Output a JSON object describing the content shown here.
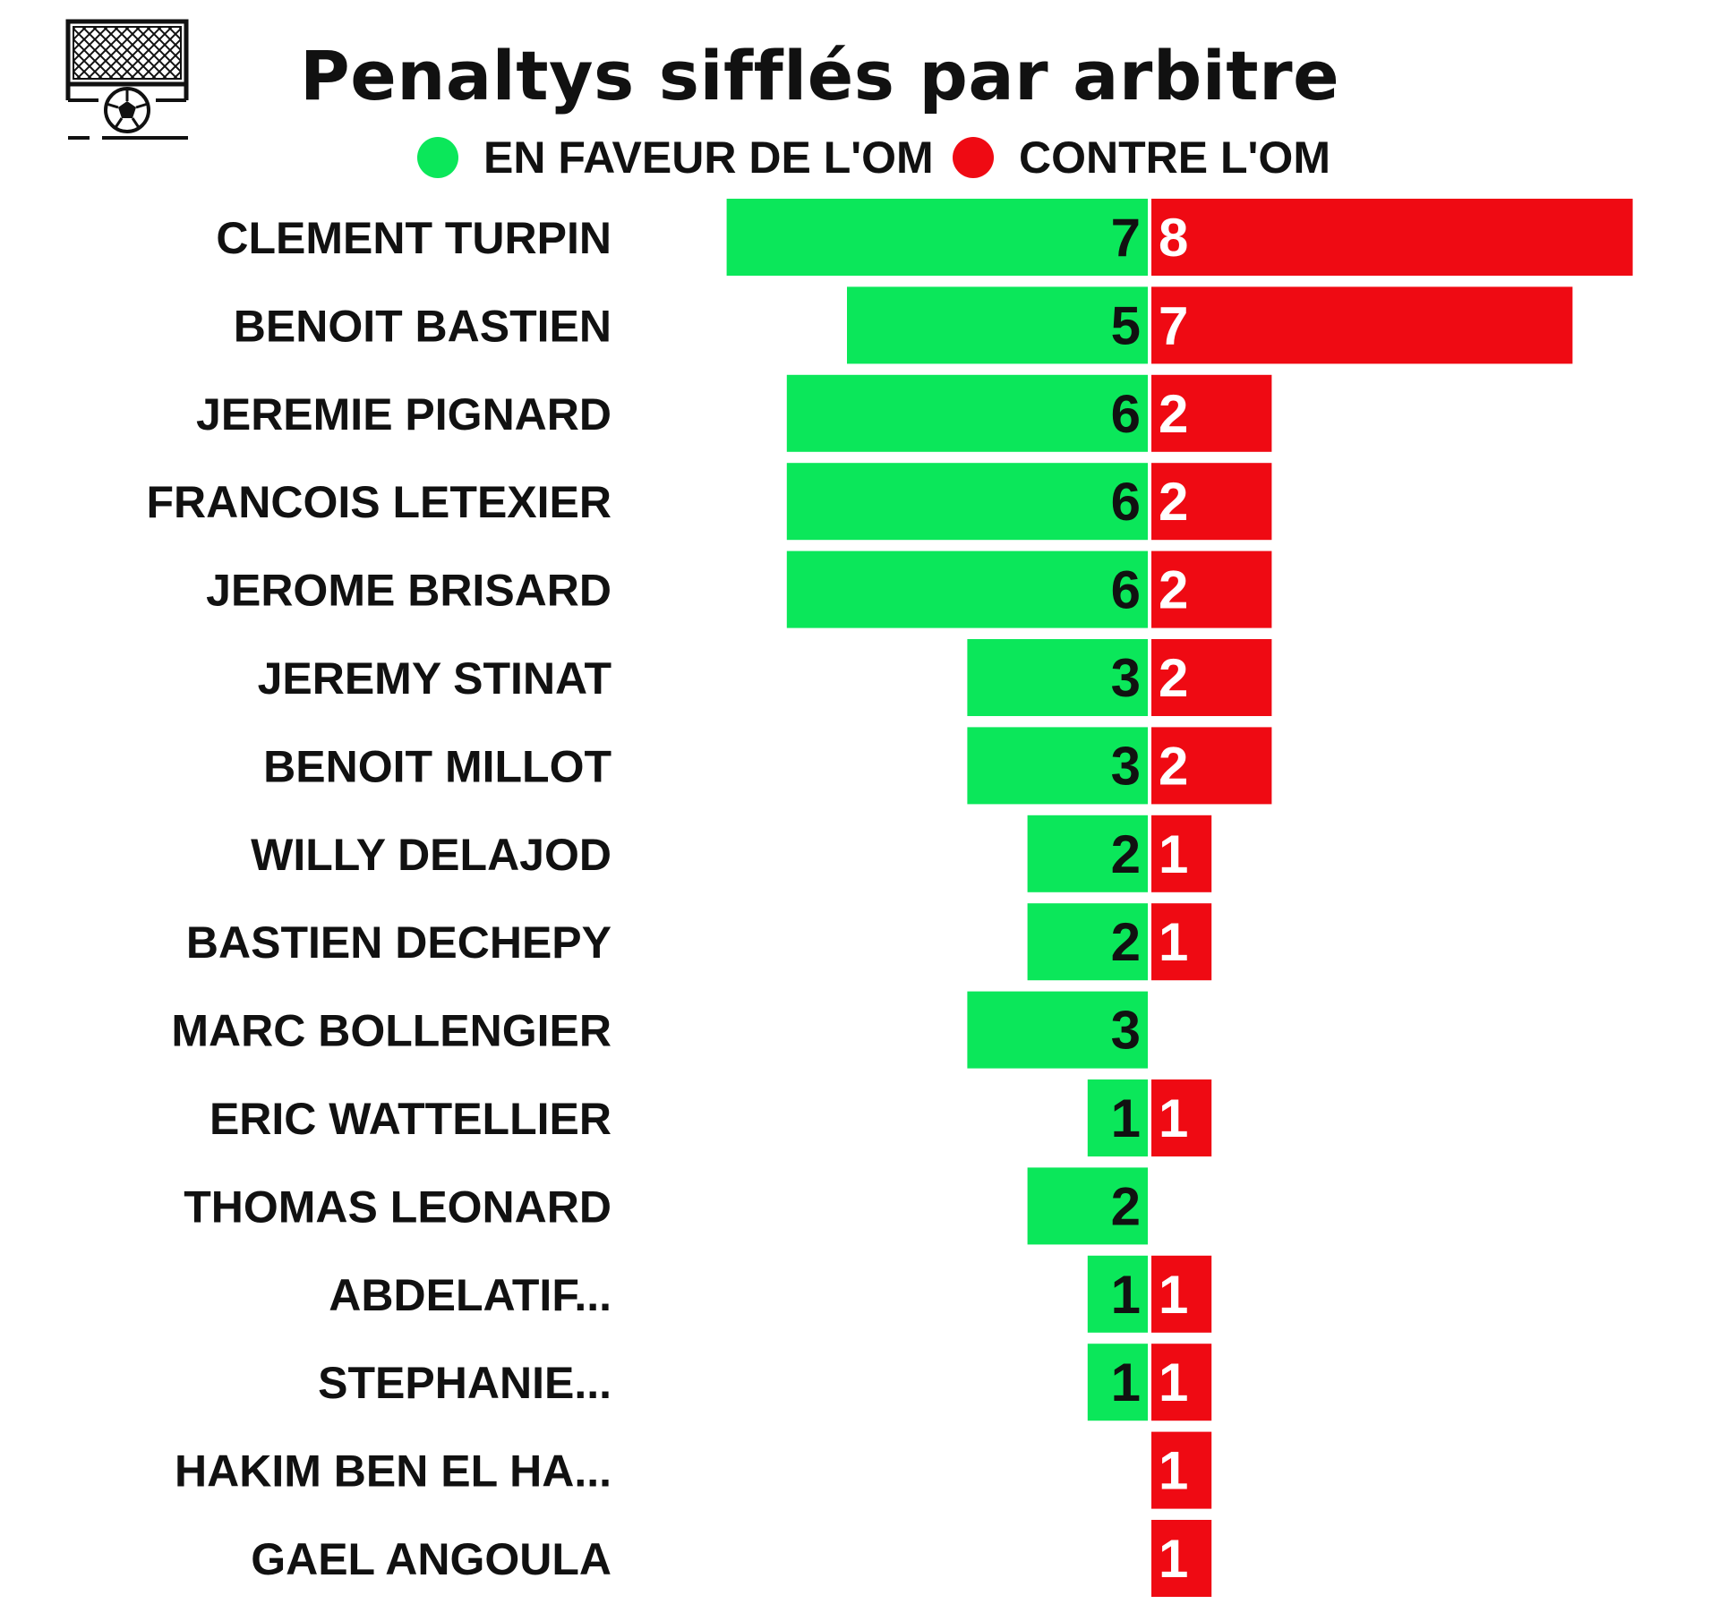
{
  "title": "Penaltys sifflés par arbitre",
  "colors": {
    "favor": "#0be75a",
    "against": "#ef0a13",
    "text": "#111111",
    "against_text": "#ffffff"
  },
  "icon": "goal-with-football-icon",
  "legend": [
    {
      "label": "EN FAVEUR DE L'OM",
      "color": "#0be75a"
    },
    {
      "label": "CONTRE L'OM",
      "color": "#ef0a13"
    }
  ],
  "chart_data": {
    "type": "bar",
    "orientation": "horizontal-diverging",
    "title": "Penaltys sifflés par arbitre",
    "categories": [
      "CLEMENT TURPIN",
      "BENOIT BASTIEN",
      "JEREMIE PIGNARD",
      "FRANCOIS LETEXIER",
      "JEROME BRISARD",
      "JEREMY STINAT",
      "BENOIT MILLOT",
      "WILLY DELAJOD",
      "BASTIEN DECHEPY",
      "MARC BOLLENGIER",
      "ERIC WATTELLIER",
      "THOMAS LEONARD",
      "ABDELATIF...",
      "STEPHANIE...",
      "HAKIM BEN EL HA...",
      "GAEL ANGOULA"
    ],
    "series": [
      {
        "name": "EN FAVEUR DE L'OM",
        "color": "#0be75a",
        "values": [
          7,
          5,
          6,
          6,
          6,
          3,
          3,
          2,
          2,
          3,
          1,
          2,
          1,
          1,
          0,
          0
        ]
      },
      {
        "name": "CONTRE L'OM",
        "color": "#ef0a13",
        "values": [
          8,
          7,
          2,
          2,
          2,
          2,
          2,
          1,
          1,
          0,
          1,
          0,
          1,
          1,
          1,
          1
        ]
      }
    ],
    "xlabel": "",
    "ylabel": "",
    "grid": false,
    "legend_position": "top-center"
  }
}
